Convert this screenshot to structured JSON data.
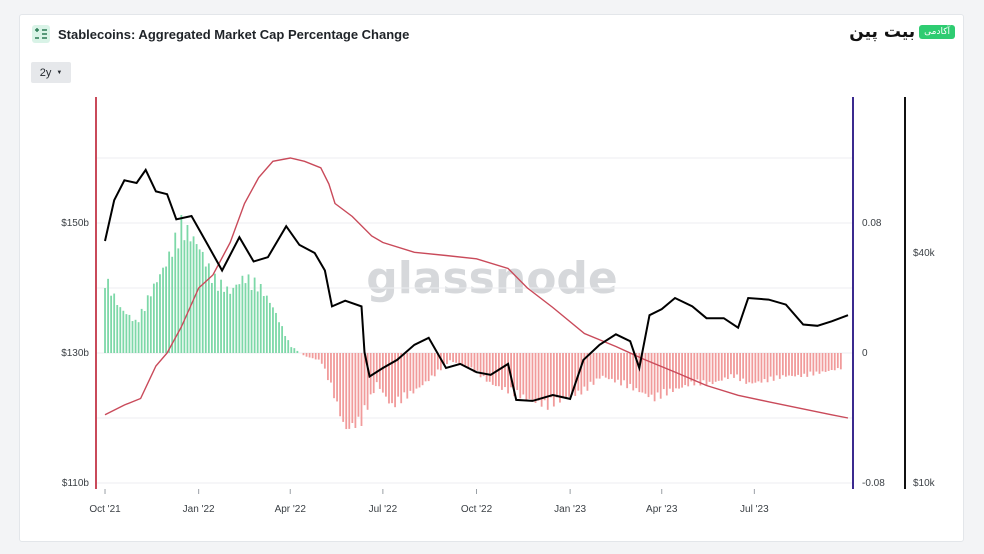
{
  "header": {
    "title": "Stablecoins: Aggregated Market Cap Percentage Change",
    "icon": "chart-list-icon",
    "brand_text": "بیت پین",
    "brand_badge": "آکادمی"
  },
  "controls": {
    "range_label": "2y"
  },
  "watermark": "glassnode",
  "colors": {
    "price": "#000000",
    "mcap": "#c94a5a",
    "pos": "#7dd8a8",
    "neg": "#f19b9b",
    "axis_left": "#c94a5a",
    "axis_mid": "#3b2a8f",
    "axis_right": "#111111"
  },
  "chart_data": {
    "type": "bar+line",
    "x_ticks": [
      "Oct '21",
      "Jan '22",
      "Apr '22",
      "Jul '22",
      "Oct '22",
      "Jan '23",
      "Apr '23",
      "Jul '23"
    ],
    "x_tick_dates": [
      "2021-10-01",
      "2022-01-01",
      "2022-04-01",
      "2022-07-01",
      "2022-10-01",
      "2023-01-01",
      "2023-04-01",
      "2023-07-01"
    ],
    "x_range": [
      "2021-09-30",
      "2023-10-02"
    ],
    "left_axis": {
      "ticks": [
        "$110b",
        "$130b",
        "$150b"
      ],
      "tick_values": [
        110,
        130,
        150
      ],
      "range": [
        110,
        150
      ]
    },
    "mid_axis": {
      "ticks": [
        "-0.08",
        "0",
        "0.08"
      ],
      "tick_values": [
        -0.08,
        0,
        0.08
      ],
      "range": [
        -0.08,
        0.08
      ]
    },
    "right_axis": {
      "ticks": [
        "$10k",
        "$40k"
      ],
      "tick_values": [
        10000,
        40000
      ],
      "log": true
    },
    "series": [
      {
        "type": "line",
        "axis": "left",
        "points": [
          [
            "2021-10-01",
            120.5
          ],
          [
            "2021-10-20",
            122
          ],
          [
            "2021-11-05",
            123
          ],
          [
            "2021-11-20",
            128
          ],
          [
            "2021-12-01",
            130
          ],
          [
            "2021-12-15",
            134
          ],
          [
            "2022-01-01",
            140
          ],
          [
            "2022-01-15",
            142
          ],
          [
            "2022-02-01",
            147
          ],
          [
            "2022-02-15",
            153
          ],
          [
            "2022-03-01",
            157
          ],
          [
            "2022-03-15",
            159.5
          ],
          [
            "2022-04-01",
            160
          ],
          [
            "2022-04-15",
            159.5
          ],
          [
            "2022-05-01",
            158.5
          ],
          [
            "2022-05-09",
            156
          ],
          [
            "2022-05-15",
            153
          ],
          [
            "2022-06-01",
            151
          ],
          [
            "2022-06-20",
            148
          ],
          [
            "2022-07-01",
            147
          ],
          [
            "2022-08-01",
            145.5
          ],
          [
            "2022-09-01",
            145
          ],
          [
            "2022-10-01",
            144.5
          ],
          [
            "2022-11-01",
            143
          ],
          [
            "2022-11-20",
            140
          ],
          [
            "2022-12-15",
            137
          ],
          [
            "2023-01-15",
            133
          ],
          [
            "2023-02-15",
            131
          ],
          [
            "2023-03-15",
            129
          ],
          [
            "2023-04-15",
            127
          ],
          [
            "2023-05-15",
            125
          ],
          [
            "2023-06-15",
            123.5
          ],
          [
            "2023-07-15",
            122.5
          ],
          [
            "2023-08-15",
            121.5
          ],
          [
            "2023-09-15",
            120.5
          ],
          [
            "2023-10-01",
            120
          ]
        ]
      },
      {
        "type": "line",
        "axis": "right",
        "points": [
          [
            "2021-10-01",
            43000
          ],
          [
            "2021-10-10",
            55000
          ],
          [
            "2021-10-20",
            62000
          ],
          [
            "2021-11-01",
            61000
          ],
          [
            "2021-11-10",
            66000
          ],
          [
            "2021-11-20",
            58000
          ],
          [
            "2021-12-01",
            57000
          ],
          [
            "2021-12-10",
            49000
          ],
          [
            "2021-12-25",
            50000
          ],
          [
            "2022-01-10",
            42000
          ],
          [
            "2022-01-24",
            36000
          ],
          [
            "2022-02-10",
            44000
          ],
          [
            "2022-02-24",
            38000
          ],
          [
            "2022-03-10",
            39000
          ],
          [
            "2022-03-28",
            47000
          ],
          [
            "2022-04-10",
            42000
          ],
          [
            "2022-04-25",
            40000
          ],
          [
            "2022-05-05",
            36000
          ],
          [
            "2022-05-12",
            29000
          ],
          [
            "2022-05-25",
            30000
          ],
          [
            "2022-06-10",
            29000
          ],
          [
            "2022-06-13",
            22000
          ],
          [
            "2022-06-18",
            19000
          ],
          [
            "2022-07-01",
            20000
          ],
          [
            "2022-07-15",
            21000
          ],
          [
            "2022-08-01",
            23000
          ],
          [
            "2022-08-15",
            24000
          ],
          [
            "2022-09-01",
            20000
          ],
          [
            "2022-09-15",
            20500
          ],
          [
            "2022-10-01",
            19500
          ],
          [
            "2022-10-15",
            19200
          ],
          [
            "2022-11-01",
            20500
          ],
          [
            "2022-11-09",
            16500
          ],
          [
            "2022-11-25",
            16400
          ],
          [
            "2022-12-15",
            17000
          ],
          [
            "2023-01-01",
            16600
          ],
          [
            "2023-01-14",
            21000
          ],
          [
            "2023-01-30",
            23000
          ],
          [
            "2023-02-15",
            24500
          ],
          [
            "2023-03-01",
            23500
          ],
          [
            "2023-03-10",
            20000
          ],
          [
            "2023-03-20",
            27500
          ],
          [
            "2023-04-01",
            28500
          ],
          [
            "2023-04-14",
            30500
          ],
          [
            "2023-05-01",
            29000
          ],
          [
            "2023-05-15",
            27000
          ],
          [
            "2023-06-01",
            27000
          ],
          [
            "2023-06-15",
            25500
          ],
          [
            "2023-06-25",
            30500
          ],
          [
            "2023-07-15",
            30200
          ],
          [
            "2023-08-01",
            29300
          ],
          [
            "2023-08-18",
            26000
          ],
          [
            "2023-09-01",
            25800
          ],
          [
            "2023-09-15",
            26500
          ],
          [
            "2023-10-01",
            27500
          ]
        ]
      },
      {
        "type": "bar",
        "axis": "mid",
        "points": [
          [
            "2021-10-01",
            0.05
          ],
          [
            "2021-10-15",
            0.03
          ],
          [
            "2021-11-01",
            0.02
          ],
          [
            "2021-11-15",
            0.04
          ],
          [
            "2021-12-01",
            0.06
          ],
          [
            "2021-12-15",
            0.085
          ],
          [
            "2022-01-01",
            0.07
          ],
          [
            "2022-01-15",
            0.05
          ],
          [
            "2022-02-01",
            0.04
          ],
          [
            "2022-02-15",
            0.05
          ],
          [
            "2022-03-01",
            0.045
          ],
          [
            "2022-03-15",
            0.03
          ],
          [
            "2022-04-01",
            0.005
          ],
          [
            "2022-04-15",
            -0.002
          ],
          [
            "2022-05-01",
            -0.005
          ],
          [
            "2022-05-10",
            -0.02
          ],
          [
            "2022-05-25",
            -0.05
          ],
          [
            "2022-06-10",
            -0.045
          ],
          [
            "2022-06-25",
            -0.02
          ],
          [
            "2022-07-10",
            -0.035
          ],
          [
            "2022-08-01",
            -0.025
          ],
          [
            "2022-08-20",
            -0.015
          ],
          [
            "2022-09-05",
            -0.005
          ],
          [
            "2022-09-25",
            -0.01
          ],
          [
            "2022-10-15",
            -0.02
          ],
          [
            "2022-11-01",
            -0.025
          ],
          [
            "2022-11-20",
            -0.03
          ],
          [
            "2022-12-10",
            -0.035
          ],
          [
            "2022-12-25",
            -0.03
          ],
          [
            "2023-01-15",
            -0.025
          ],
          [
            "2023-02-01",
            -0.015
          ],
          [
            "2023-02-20",
            -0.02
          ],
          [
            "2023-03-10",
            -0.025
          ],
          [
            "2023-03-25",
            -0.03
          ],
          [
            "2023-04-10",
            -0.025
          ],
          [
            "2023-05-01",
            -0.02
          ],
          [
            "2023-05-20",
            -0.02
          ],
          [
            "2023-06-10",
            -0.015
          ],
          [
            "2023-06-25",
            -0.02
          ],
          [
            "2023-07-15",
            -0.018
          ],
          [
            "2023-08-01",
            -0.015
          ],
          [
            "2023-08-20",
            -0.015
          ],
          [
            "2023-09-10",
            -0.012
          ],
          [
            "2023-09-25",
            -0.01
          ]
        ]
      }
    ]
  }
}
